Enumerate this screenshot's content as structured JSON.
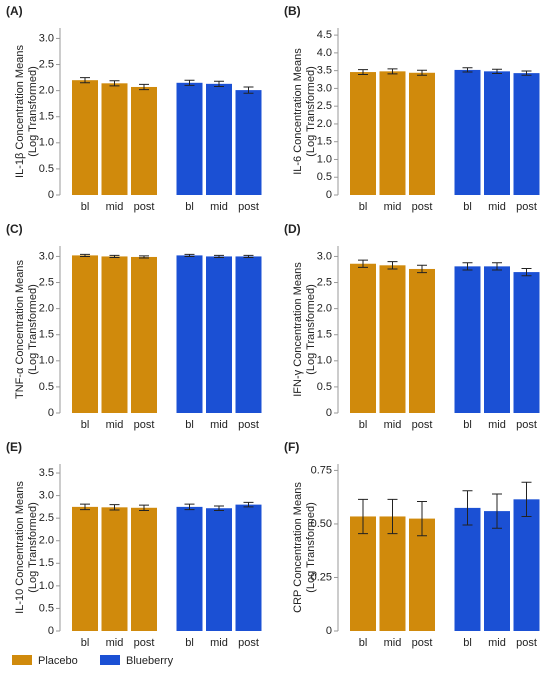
{
  "legend": {
    "series": [
      {
        "name": "Placebo",
        "color": "#d08a0c"
      },
      {
        "name": "Blueberry",
        "color": "#1b50d4"
      }
    ]
  },
  "chart_data": [
    {
      "type": "bar",
      "title": "(A)",
      "ylabel": [
        "IL-1β Concentration Means",
        "(Log Transformed)"
      ],
      "categories": [
        "bl",
        "mid",
        "post"
      ],
      "ylim": [
        0,
        3.2
      ],
      "yticks": [
        0,
        0.5,
        {
          "value": 1,
          "label": "1.0"
        },
        1.5,
        {
          "value": 2,
          "label": "2.0"
        },
        2.5,
        {
          "value": 3,
          "label": "3.0"
        }
      ],
      "series": [
        {
          "values": [
            2.2,
            2.14,
            2.07
          ],
          "errors": [
            0.05,
            0.05,
            0.05
          ]
        },
        {
          "values": [
            2.15,
            2.13,
            2.01
          ],
          "errors": [
            0.05,
            0.05,
            0.06
          ]
        }
      ]
    },
    {
      "type": "bar",
      "title": "(B)",
      "ylabel": [
        "IL-6 Concentration Means",
        "(Log Transformed)"
      ],
      "categories": [
        "bl",
        "mid",
        "post"
      ],
      "ylim": [
        0,
        4.7
      ],
      "yticks": [
        0,
        0.5,
        {
          "value": 1,
          "label": "1.0"
        },
        1.5,
        {
          "value": 2,
          "label": "2.0"
        },
        2.5,
        {
          "value": 3,
          "label": "3.0"
        },
        3.5,
        {
          "value": 4,
          "label": "4.0"
        },
        4.5
      ],
      "series": [
        {
          "values": [
            3.46,
            3.48,
            3.44
          ],
          "errors": [
            0.07,
            0.07,
            0.07
          ]
        },
        {
          "values": [
            3.52,
            3.48,
            3.43
          ],
          "errors": [
            0.06,
            0.06,
            0.06
          ]
        }
      ]
    },
    {
      "type": "bar",
      "title": "(C)",
      "ylabel": [
        "TNF-α Concentration Means",
        "(Log Transformed)"
      ],
      "categories": [
        "bl",
        "mid",
        "post"
      ],
      "ylim": [
        0,
        3.2
      ],
      "yticks": [
        0,
        0.5,
        {
          "value": 1,
          "label": "1.0"
        },
        1.5,
        {
          "value": 2,
          "label": "2.0"
        },
        2.5,
        {
          "value": 3,
          "label": "3.0"
        }
      ],
      "series": [
        {
          "values": [
            3.02,
            3.0,
            2.99
          ],
          "errors": [
            0.02,
            0.02,
            0.02
          ]
        },
        {
          "values": [
            3.02,
            3.0,
            3.0
          ],
          "errors": [
            0.02,
            0.02,
            0.02
          ]
        }
      ]
    },
    {
      "type": "bar",
      "title": "(D)",
      "ylabel": [
        "IFN-γ Concentration Means",
        "(Log Transformed)"
      ],
      "categories": [
        "bl",
        "mid",
        "post"
      ],
      "ylim": [
        0,
        3.2
      ],
      "yticks": [
        0,
        0.5,
        {
          "value": 1,
          "label": "1.0"
        },
        1.5,
        {
          "value": 2,
          "label": "2.0"
        },
        2.5,
        {
          "value": 3,
          "label": "3.0"
        }
      ],
      "series": [
        {
          "values": [
            2.86,
            2.83,
            2.76
          ],
          "errors": [
            0.07,
            0.07,
            0.07
          ]
        },
        {
          "values": [
            2.81,
            2.81,
            2.7
          ],
          "errors": [
            0.07,
            0.07,
            0.07
          ]
        }
      ]
    },
    {
      "type": "bar",
      "title": "(E)",
      "ylabel": [
        "IL-10 Concentration Means",
        "(Log Transformed)"
      ],
      "categories": [
        "bl",
        "mid",
        "post"
      ],
      "ylim": [
        0,
        3.7
      ],
      "yticks": [
        0,
        0.5,
        {
          "value": 1,
          "label": "1.0"
        },
        1.5,
        {
          "value": 2,
          "label": "2.0"
        },
        2.5,
        {
          "value": 3,
          "label": "3.0"
        },
        3.5
      ],
      "series": [
        {
          "values": [
            2.75,
            2.74,
            2.73
          ],
          "errors": [
            0.06,
            0.06,
            0.06
          ]
        },
        {
          "values": [
            2.75,
            2.72,
            2.8
          ],
          "errors": [
            0.06,
            0.05,
            0.05
          ]
        }
      ]
    },
    {
      "type": "bar",
      "title": "(F)",
      "ylabel": [
        "CRP Concentration Means",
        "(Log Transformed)"
      ],
      "categories": [
        "bl",
        "mid",
        "post"
      ],
      "ylim": [
        0,
        0.78
      ],
      "yticks": [
        0,
        0.25,
        {
          "value": 0.5,
          "label": "0.50"
        },
        0.75
      ],
      "series": [
        {
          "values": [
            0.535,
            0.535,
            0.525
          ],
          "errors": [
            0.08,
            0.08,
            0.08
          ]
        },
        {
          "values": [
            0.575,
            0.56,
            0.615
          ],
          "errors": [
            0.08,
            0.08,
            0.08
          ]
        }
      ]
    }
  ]
}
